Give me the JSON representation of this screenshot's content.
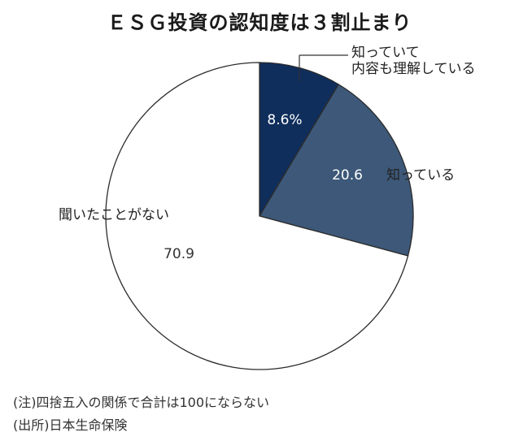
{
  "chart_data": {
    "type": "pie",
    "title": "ＥＳＧ投資の認知度は３割止まり",
    "slices": [
      {
        "label_lines": [
          "知っていて",
          "内容も理解している"
        ],
        "value": 8.6,
        "value_label": "8.6%",
        "color": "#0f2e5c"
      },
      {
        "label_lines": [
          "知っている"
        ],
        "value": 20.6,
        "value_label": "20.6",
        "color": "#3d5878"
      },
      {
        "label_lines": [
          "聞いたことがない"
        ],
        "value": 70.9,
        "value_label": "70.9",
        "color": "#ffffff"
      }
    ],
    "legend": "none",
    "grid": false
  },
  "notes": [
    "(注)四捨五入の関係で合計は100にならない",
    "(出所)日本生命保険"
  ]
}
